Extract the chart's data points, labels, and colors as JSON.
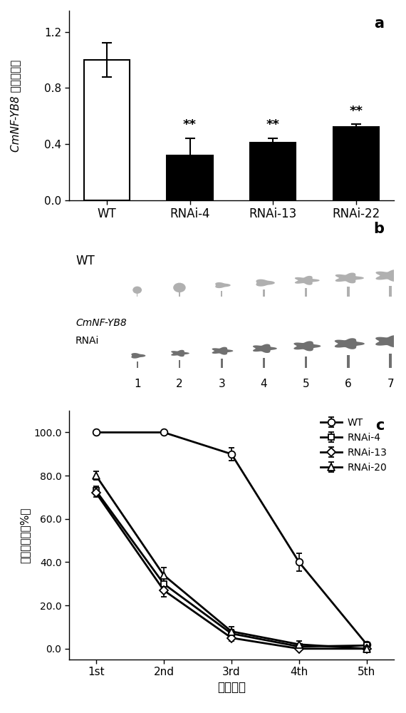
{
  "panel_a": {
    "categories": [
      "WT",
      "RNAi-4",
      "RNAi-13",
      "RNAi-22"
    ],
    "values": [
      1.0,
      0.32,
      0.41,
      0.52
    ],
    "errors": [
      0.12,
      0.12,
      0.03,
      0.02
    ],
    "bar_colors": [
      "white",
      "black",
      "black",
      "black"
    ],
    "bar_edgecolors": [
      "black",
      "black",
      "black",
      "black"
    ],
    "ylabel_italic": "CmNF-YB8",
    "ylabel_normal": " 的相对表达",
    "ylim": [
      0,
      1.35
    ],
    "yticks": [
      0.0,
      0.4,
      0.8,
      1.2
    ],
    "significance": [
      "",
      "**",
      "**",
      "**"
    ],
    "panel_label": "a"
  },
  "panel_b": {
    "wt_label": "WT",
    "rnai_label1": "CmNF-YB8",
    "rnai_label2": "RNAi",
    "numbers": [
      "1",
      "2",
      "3",
      "4",
      "5",
      "6",
      "7"
    ],
    "panel_label": "b"
  },
  "panel_c": {
    "x_labels": [
      "1st",
      "2nd",
      "3rd",
      "4th",
      "5th"
    ],
    "x_values": [
      1,
      2,
      3,
      4,
      5
    ],
    "series": [
      {
        "label": "WT",
        "values": [
          100.0,
          100.0,
          90.0,
          40.0,
          2.0
        ],
        "errors": [
          0.5,
          0.5,
          3.0,
          4.0,
          1.0
        ],
        "marker": "o",
        "lw": 2.0
      },
      {
        "label": "RNAi-4",
        "values": [
          73.0,
          30.0,
          7.0,
          1.0,
          1.5
        ],
        "errors": [
          2.0,
          3.0,
          2.0,
          0.5,
          0.5
        ],
        "marker": "s",
        "lw": 2.0
      },
      {
        "label": "RNAi-13",
        "values": [
          72.0,
          27.0,
          5.0,
          0.0,
          0.0
        ],
        "errors": [
          2.0,
          3.0,
          1.5,
          0.3,
          0.3
        ],
        "marker": "D",
        "lw": 2.0
      },
      {
        "label": "RNAi-20",
        "values": [
          80.0,
          34.0,
          8.0,
          2.0,
          0.0
        ],
        "errors": [
          2.0,
          3.5,
          2.0,
          1.5,
          0.3
        ],
        "marker": "^",
        "lw": 2.0
      }
    ],
    "ylabel": "幼叶百分比（%）",
    "xlabel": "叶子位置",
    "ylim": [
      -5,
      110
    ],
    "yticks": [
      0.0,
      20.0,
      40.0,
      60.0,
      80.0,
      100.0
    ],
    "panel_label": "c"
  },
  "bg_color": "white",
  "font_color": "black"
}
